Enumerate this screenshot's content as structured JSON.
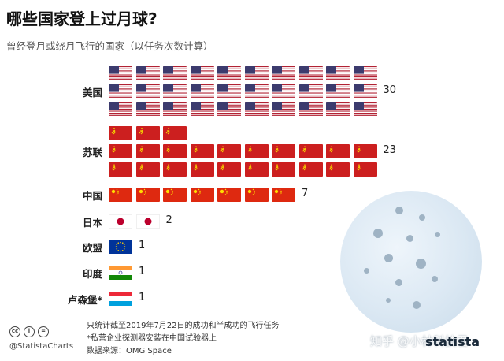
{
  "title": "哪些国家登上过月球?",
  "subtitle": "曾经登月或绕月飞行的国家（以任务次数计算）",
  "chart_data": {
    "type": "pictograph",
    "title": "哪些国家登上过月球?",
    "subtitle": "曾经登月或绕月飞行的国家（以任务次数计算）",
    "categories": [
      "美国",
      "苏联",
      "中国",
      "日本",
      "欧盟",
      "印度",
      "卢森堡*"
    ],
    "values": [
      30,
      23,
      7,
      2,
      1,
      1,
      1
    ],
    "flags": [
      "usa",
      "ussr",
      "china",
      "japan",
      "eu",
      "india",
      "luxembourg"
    ]
  },
  "footer": {
    "note1": "只统计截至2019年7月22日的成功和半成功的飞行任务",
    "note2": "*私营企业探测器安装在中国试验器上",
    "source": "数据来源：OMG Space"
  },
  "credits": {
    "handle": "@StatistaCharts",
    "logo": "statista",
    "watermark": "知乎 @小林科技君"
  },
  "colors": {
    "ussr_red": "#cc1f1f",
    "china_red": "#de2910",
    "moon": "#dbe8f3"
  },
  "icons": [
    "cc-icon",
    "by-icon",
    "equals-icon"
  ]
}
